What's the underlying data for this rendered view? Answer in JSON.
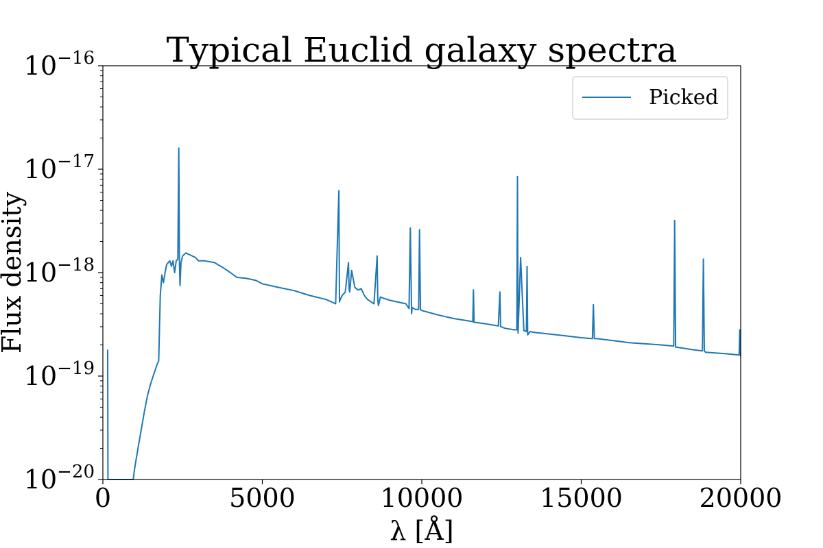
{
  "chart_data": {
    "type": "line",
    "title": "Typical Euclid galaxy spectra",
    "xlabel": "λ [Å]",
    "ylabel": "Flux density",
    "xlim": [
      0,
      20000
    ],
    "ylim": [
      1e-20,
      1e-16
    ],
    "yscale": "log",
    "grid": false,
    "legend_position": "top-right",
    "x_ticks": [
      "0",
      "5000",
      "10000",
      "15000",
      "20000"
    ],
    "y_ticks": [
      {
        "base": "10",
        "exp": "−16"
      },
      {
        "base": "10",
        "exp": "−17"
      },
      {
        "base": "10",
        "exp": "−18"
      },
      {
        "base": "10",
        "exp": "−19"
      },
      {
        "base": "10",
        "exp": "−20"
      }
    ],
    "series": [
      {
        "name": "Picked",
        "color": "#1f77b4",
        "x": [
          150,
          160,
          170,
          180,
          200,
          950,
          1000,
          1100,
          1200,
          1300,
          1400,
          1500,
          1600,
          1700,
          1750,
          1800,
          1850,
          1900,
          1950,
          2000,
          2050,
          2100,
          2150,
          2200,
          2250,
          2300,
          2350,
          2380,
          2400,
          2420,
          2450,
          2500,
          2600,
          2700,
          2800,
          2900,
          3000,
          3200,
          3500,
          3800,
          4000,
          4200,
          4500,
          4800,
          5000,
          5500,
          6000,
          6500,
          7000,
          7300,
          7400,
          7420,
          7440,
          7500,
          7600,
          7700,
          7720,
          7740,
          7800,
          7900,
          8000,
          8100,
          8200,
          8300,
          8500,
          8600,
          8620,
          8640,
          8700,
          9000,
          9500,
          9600,
          9640,
          9680,
          9700,
          9800,
          9900,
          9930,
          9960,
          10000,
          10500,
          11000,
          11500,
          11600,
          11620,
          11640,
          11700,
          12000,
          12400,
          12450,
          12470,
          12490,
          12600,
          12900,
          12980,
          13000,
          13020,
          13100,
          13200,
          13280,
          13300,
          13320,
          13400,
          13500,
          14000,
          14500,
          15000,
          15350,
          15380,
          15410,
          15500,
          16000,
          16500,
          17000,
          17500,
          17900,
          17930,
          17960,
          18000,
          18500,
          18800,
          18830,
          18860,
          18900,
          19500,
          19950,
          19970,
          19990,
          20000
        ],
        "y": [
          1.8e-19,
          1e-20,
          1e-20,
          1e-20,
          1e-20,
          1e-20,
          1.3e-20,
          2e-20,
          3e-20,
          4.5e-20,
          6.5e-20,
          8.5e-20,
          1.05e-19,
          1.3e-19,
          1.4e-19,
          6e-19,
          9.5e-19,
          8e-19,
          1e-18,
          1.2e-18,
          1.25e-18,
          1.3e-18,
          1.15e-18,
          1.3e-18,
          1e-18,
          1.3e-18,
          1.35e-18,
          1.6e-17,
          1.3e-18,
          7.5e-19,
          1.25e-18,
          1.45e-18,
          1.55e-18,
          1.5e-18,
          1.45e-18,
          1.4e-18,
          1.3e-18,
          1.3e-18,
          1.25e-18,
          1.1e-18,
          1e-18,
          9e-19,
          8.8e-19,
          8.4e-19,
          7.8e-19,
          7.2e-19,
          6.7e-19,
          6e-19,
          5.5e-19,
          5e-19,
          6.2e-18,
          5.2e-19,
          5.5e-19,
          6e-19,
          6.5e-19,
          1.25e-18,
          7e-19,
          6.5e-19,
          1.05e-18,
          7.2e-19,
          6.8e-19,
          7e-19,
          6e-19,
          5.5e-19,
          5e-19,
          1.45e-18,
          5.5e-19,
          4.8e-19,
          5.8e-19,
          5.4e-19,
          5e-19,
          4.5e-19,
          2.7e-18,
          4e-19,
          4.6e-19,
          4.4e-19,
          4.4e-19,
          2.6e-18,
          4.4e-19,
          4.3e-19,
          3.9e-19,
          3.6e-19,
          3.4e-19,
          3.35e-19,
          6.8e-19,
          3.3e-19,
          3.3e-19,
          3.2e-19,
          3.05e-19,
          6.5e-19,
          3e-19,
          3e-19,
          2.9e-19,
          2.8e-19,
          2.8e-19,
          8.5e-18,
          2.6e-19,
          1.4e-18,
          2.75e-19,
          2.7e-19,
          1.15e-18,
          2.5e-19,
          2.7e-19,
          2.65e-19,
          2.55e-19,
          2.45e-19,
          2.35e-19,
          2.3e-19,
          4.9e-19,
          2.3e-19,
          2.3e-19,
          2.2e-19,
          2.1e-19,
          2.05e-19,
          2e-19,
          1.95e-19,
          3.2e-18,
          1.9e-19,
          1.9e-19,
          1.8e-19,
          1.75e-19,
          1.35e-18,
          1.75e-19,
          1.7e-19,
          1.65e-19,
          1.6e-19,
          2.8e-19,
          1.6e-19,
          1.55e-19
        ]
      }
    ]
  }
}
